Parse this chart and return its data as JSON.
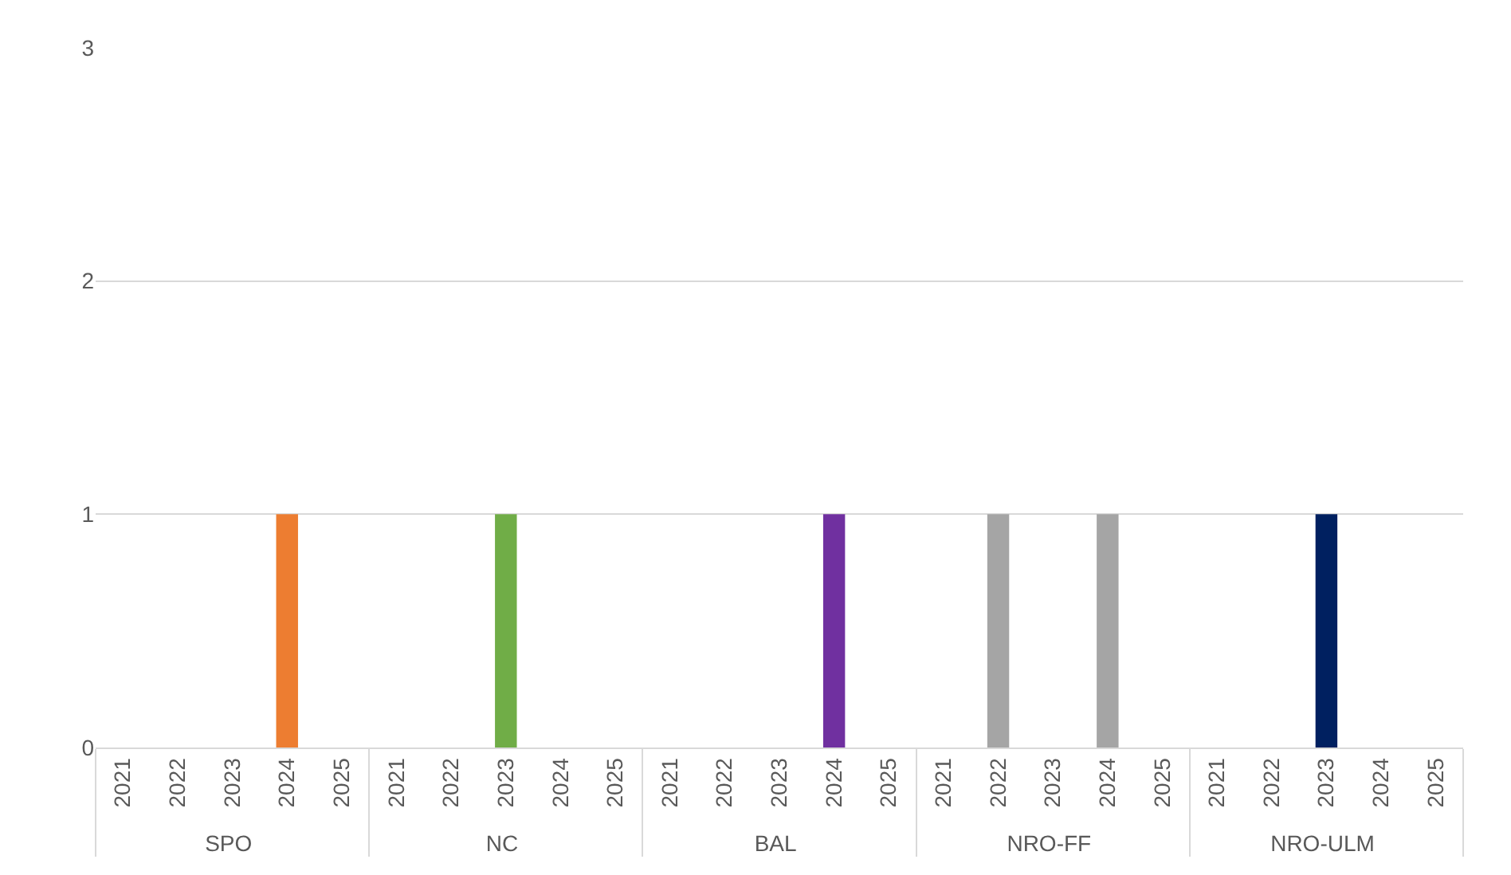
{
  "chart_data": {
    "type": "bar",
    "categories": [
      "2021",
      "2022",
      "2023",
      "2024",
      "2025",
      "2021",
      "2022",
      "2023",
      "2024",
      "2025",
      "2021",
      "2022",
      "2023",
      "2024",
      "2025",
      "2021",
      "2022",
      "2023",
      "2024",
      "2025",
      "2021",
      "2022",
      "2023",
      "2024",
      "2025"
    ],
    "values": [
      null,
      null,
      null,
      1,
      null,
      null,
      null,
      1,
      null,
      null,
      null,
      null,
      null,
      1,
      null,
      null,
      1,
      null,
      1,
      null,
      null,
      null,
      1,
      null,
      null
    ],
    "colors": [
      "#ed7d31",
      "#ed7d31",
      "#ed7d31",
      "#ed7d31",
      "#ed7d31",
      "#70ad47",
      "#70ad47",
      "#70ad47",
      "#70ad47",
      "#70ad47",
      "#7030a0",
      "#7030a0",
      "#7030a0",
      "#7030a0",
      "#7030a0",
      "#a5a5a5",
      "#a5a5a5",
      "#a5a5a5",
      "#a5a5a5",
      "#a5a5a5",
      "#002060",
      "#002060",
      "#002060",
      "#002060",
      "#002060"
    ],
    "annotations": [
      "SPO",
      "NC",
      "BAL",
      "NRO-FF",
      "NRO-ULM"
    ],
    "ylim": [
      0,
      3
    ],
    "yticks": [
      0,
      1,
      2,
      3
    ],
    "grid": "y"
  }
}
